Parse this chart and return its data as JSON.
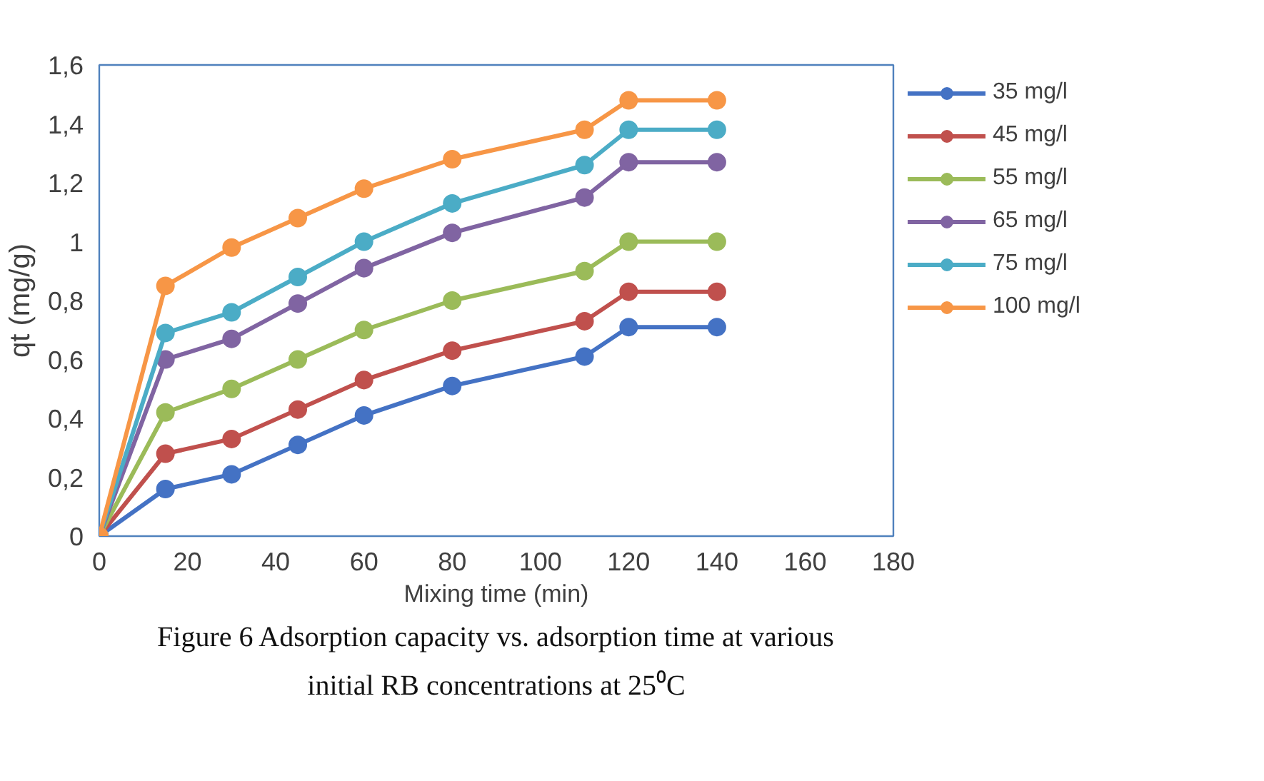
{
  "chart_data": {
    "type": "line",
    "xlabel": "Mixing time (min)",
    "ylabel": "qt (mg/g)",
    "annotations": [
      "Figure 6 Adsorption capacity vs. adsorption time at various initial RB concentrations at 25⁰C"
    ],
    "x": [
      0,
      15,
      30,
      45,
      60,
      80,
      110,
      120,
      140
    ],
    "series": [
      {
        "name": "35 mg/l",
        "color": "#4472c4",
        "values": [
          0,
          0.16,
          0.21,
          0.31,
          0.41,
          0.51,
          0.61,
          0.71,
          0.71
        ]
      },
      {
        "name": "45 mg/l",
        "color": "#c0504d",
        "values": [
          0,
          0.28,
          0.33,
          0.43,
          0.53,
          0.63,
          0.73,
          0.83,
          0.83
        ]
      },
      {
        "name": "55 mg/l",
        "color": "#9bbb59",
        "values": [
          0,
          0.42,
          0.5,
          0.6,
          0.7,
          0.8,
          0.9,
          1.0,
          1.0
        ]
      },
      {
        "name": "65 mg/l",
        "color": "#8064a2",
        "values": [
          0,
          0.6,
          0.67,
          0.79,
          0.91,
          1.03,
          1.15,
          1.27,
          1.27
        ]
      },
      {
        "name": "75 mg/l",
        "color": "#4bacc6",
        "values": [
          0,
          0.69,
          0.76,
          0.88,
          1.0,
          1.13,
          1.26,
          1.38,
          1.38
        ]
      },
      {
        "name": "100 mg/l",
        "color": "#f79646",
        "values": [
          0,
          0.85,
          0.98,
          1.08,
          1.18,
          1.28,
          1.38,
          1.48,
          1.48
        ]
      }
    ],
    "xlim": [
      0,
      180
    ],
    "xticks": [
      0,
      20,
      40,
      60,
      80,
      100,
      120,
      140,
      160,
      180
    ],
    "ylim": [
      0,
      1.6
    ],
    "yticks": [
      0,
      {
        "value": 0.2,
        "label": "0,2"
      },
      {
        "value": 0.4,
        "label": "0,4"
      },
      {
        "value": 0.6,
        "label": "0,6"
      },
      {
        "value": 0.8,
        "label": "0,8"
      },
      1,
      {
        "value": 1.2,
        "label": "1,2"
      },
      {
        "value": 1.4,
        "label": "1,4"
      },
      {
        "value": 1.6,
        "label": "1,6"
      }
    ],
    "grid": false,
    "legend": "right",
    "marker": "circle",
    "line_style": "solid"
  }
}
